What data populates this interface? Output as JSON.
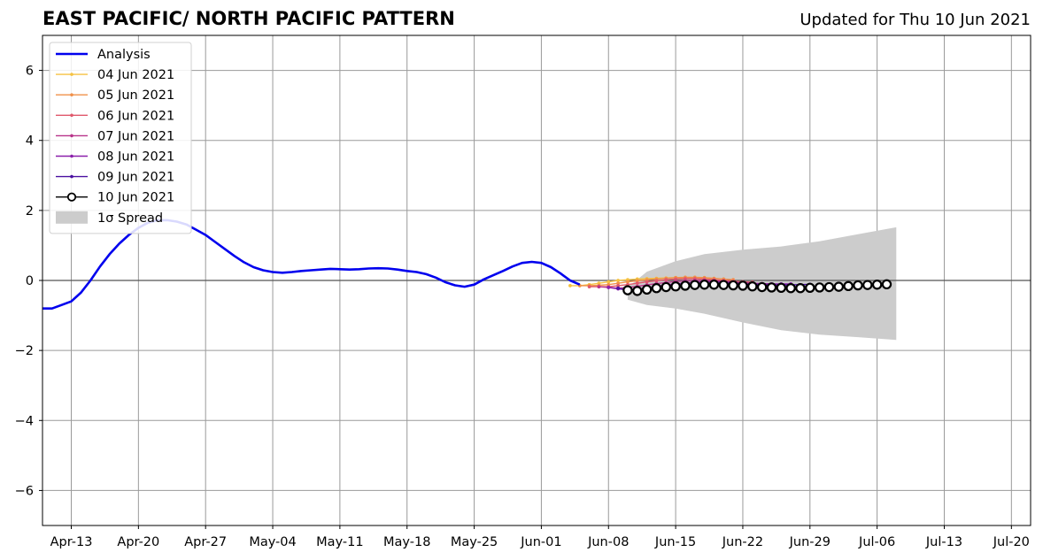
{
  "header": {
    "title": "EAST PACIFIC/ NORTH PACIFIC PATTERN",
    "subtitle": "Updated for Thu 10 Jun 2021"
  },
  "chart_data": {
    "type": "line",
    "title": "EAST PACIFIC/ NORTH PACIFIC PATTERN",
    "xlabel": "",
    "ylabel": "",
    "x_range": [
      "2021-04-10",
      "2021-07-22"
    ],
    "ylim": [
      -7,
      7
    ],
    "yticks": [
      -6,
      -4,
      -2,
      0,
      2,
      4,
      6
    ],
    "ytick_labels": [
      "−6",
      "−4",
      "−2",
      "0",
      "2",
      "4",
      "6"
    ],
    "xticks": [
      "2021-04-13",
      "2021-04-20",
      "2021-04-27",
      "2021-05-04",
      "2021-05-11",
      "2021-05-18",
      "2021-05-25",
      "2021-06-01",
      "2021-06-08",
      "2021-06-15",
      "2021-06-22",
      "2021-06-29",
      "2021-07-06",
      "2021-07-13",
      "2021-07-20"
    ],
    "xtick_labels": [
      "Apr-13",
      "Apr-20",
      "Apr-27",
      "May-04",
      "May-11",
      "May-18",
      "May-25",
      "Jun-01",
      "Jun-08",
      "Jun-15",
      "Jun-22",
      "Jun-29",
      "Jul-06",
      "Jul-13",
      "Jul-20"
    ],
    "grid": true,
    "legend": "top-left",
    "zero_line": true,
    "analysis": {
      "name": "Analysis",
      "color": "#0000ee",
      "x": [
        "2021-04-10",
        "2021-04-11",
        "2021-04-12",
        "2021-04-13",
        "2021-04-14",
        "2021-04-15",
        "2021-04-16",
        "2021-04-17",
        "2021-04-18",
        "2021-04-19",
        "2021-04-20",
        "2021-04-21",
        "2021-04-22",
        "2021-04-23",
        "2021-04-24",
        "2021-04-25",
        "2021-04-26",
        "2021-04-27",
        "2021-04-28",
        "2021-04-29",
        "2021-04-30",
        "2021-05-01",
        "2021-05-02",
        "2021-05-03",
        "2021-05-04",
        "2021-05-05",
        "2021-05-06",
        "2021-05-07",
        "2021-05-08",
        "2021-05-09",
        "2021-05-10",
        "2021-05-11",
        "2021-05-12",
        "2021-05-13",
        "2021-05-14",
        "2021-05-15",
        "2021-05-16",
        "2021-05-17",
        "2021-05-18",
        "2021-05-19",
        "2021-05-20",
        "2021-05-21",
        "2021-05-22",
        "2021-05-23",
        "2021-05-24",
        "2021-05-25",
        "2021-05-26",
        "2021-05-27",
        "2021-05-28",
        "2021-05-29",
        "2021-05-30",
        "2021-05-31",
        "2021-06-01",
        "2021-06-02",
        "2021-06-03",
        "2021-06-04",
        "2021-06-05"
      ],
      "y": [
        -0.8,
        -0.8,
        -0.7,
        -0.6,
        -0.35,
        0.0,
        0.4,
        0.75,
        1.05,
        1.3,
        1.5,
        1.65,
        1.72,
        1.72,
        1.68,
        1.6,
        1.45,
        1.3,
        1.1,
        0.9,
        0.7,
        0.52,
        0.38,
        0.29,
        0.24,
        0.22,
        0.24,
        0.27,
        0.29,
        0.31,
        0.33,
        0.32,
        0.31,
        0.32,
        0.34,
        0.35,
        0.34,
        0.31,
        0.27,
        0.24,
        0.18,
        0.08,
        -0.05,
        -0.14,
        -0.18,
        -0.12,
        0.03,
        0.15,
        0.27,
        0.4,
        0.5,
        0.53,
        0.5,
        0.38,
        0.2,
        0.0,
        -0.12
      ]
    },
    "forecasts": [
      {
        "name": "04 Jun 2021",
        "color": "#f5c242",
        "start": "2021-06-04",
        "y": [
          -0.15,
          -0.15,
          -0.12,
          -0.08,
          -0.04,
          0.0,
          0.02,
          0.04,
          0.05,
          0.06,
          0.07,
          0.08,
          0.08,
          0.07,
          0.06,
          0.05
        ]
      },
      {
        "name": "05 Jun 2021",
        "color": "#f0904a",
        "start": "2021-06-05",
        "y": [
          -0.15,
          -0.15,
          -0.14,
          -0.12,
          -0.08,
          -0.04,
          -0.01,
          0.02,
          0.04,
          0.06,
          0.08,
          0.09,
          0.09,
          0.08,
          0.06,
          0.04,
          0.02
        ]
      },
      {
        "name": "06 Jun 2021",
        "color": "#e0586b",
        "start": "2021-06-06",
        "y": [
          -0.18,
          -0.18,
          -0.18,
          -0.15,
          -0.12,
          -0.08,
          -0.04,
          -0.01,
          0.02,
          0.04,
          0.05,
          0.05,
          0.04,
          0.02,
          0.0,
          -0.02,
          -0.04,
          -0.05
        ]
      },
      {
        "name": "07 Jun 2021",
        "color": "#b8338a",
        "start": "2021-06-07",
        "y": [
          -0.18,
          -0.2,
          -0.22,
          -0.2,
          -0.17,
          -0.13,
          -0.09,
          -0.06,
          -0.03,
          -0.01,
          0.0,
          0.0,
          -0.01,
          -0.03,
          -0.05,
          -0.07,
          -0.08,
          -0.09,
          -0.1
        ]
      },
      {
        "name": "08 Jun 2021",
        "color": "#8a1faa",
        "start": "2021-06-08",
        "y": [
          -0.2,
          -0.24,
          -0.27,
          -0.25,
          -0.21,
          -0.17,
          -0.13,
          -0.1,
          -0.07,
          -0.05,
          -0.04,
          -0.04,
          -0.05,
          -0.06,
          -0.08,
          -0.09,
          -0.1,
          -0.1,
          -0.1,
          -0.1
        ]
      },
      {
        "name": "09 Jun 2021",
        "color": "#4a10a0",
        "start": "2021-06-09",
        "y": [
          -0.22,
          -0.28,
          -0.3,
          -0.27,
          -0.23,
          -0.19,
          -0.16,
          -0.13,
          -0.11,
          -0.1,
          -0.09,
          -0.09,
          -0.1,
          -0.11,
          -0.12,
          -0.13,
          -0.13,
          -0.13,
          -0.13,
          -0.12,
          -0.11
        ]
      },
      {
        "name": "10 Jun 2021",
        "color": "#000000",
        "start": "2021-06-10",
        "y": [
          -0.28,
          -0.3,
          -0.26,
          -0.22,
          -0.19,
          -0.17,
          -0.15,
          -0.13,
          -0.12,
          -0.12,
          -0.13,
          -0.14,
          -0.15,
          -0.17,
          -0.19,
          -0.2,
          -0.21,
          -0.22,
          -0.22,
          -0.21,
          -0.2,
          -0.19,
          -0.18,
          -0.16,
          -0.14,
          -0.13,
          -0.12,
          -0.11
        ]
      }
    ],
    "spread": {
      "name": "1σ Spread",
      "color": "#cccccc",
      "x": [
        "2021-06-10",
        "2021-06-12",
        "2021-06-15",
        "2021-06-18",
        "2021-06-22",
        "2021-06-26",
        "2021-06-30",
        "2021-07-04",
        "2021-07-08"
      ],
      "upper": [
        -0.2,
        0.25,
        0.55,
        0.75,
        0.88,
        0.97,
        1.12,
        1.32,
        1.52
      ],
      "lower": [
        -0.55,
        -0.7,
        -0.8,
        -0.95,
        -1.2,
        -1.42,
        -1.55,
        -1.62,
        -1.7
      ]
    }
  }
}
